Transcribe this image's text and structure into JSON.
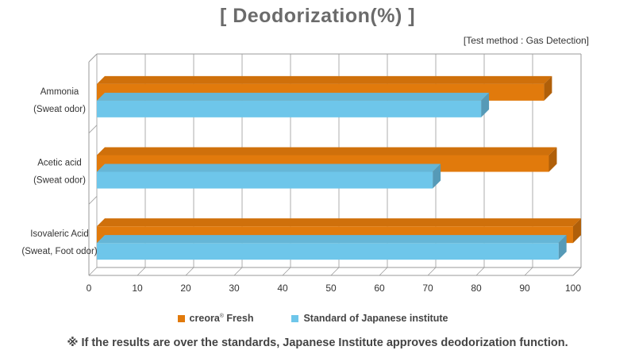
{
  "title": "[ Deodorization(%) ]",
  "test_method": "[Test method : Gas Detection]",
  "footnote": "※ If the results are over the standards, Japanese Institute approves deodorization function.",
  "chart_data": {
    "type": "bar",
    "orientation": "horizontal",
    "categories": [
      [
        "Ammonia",
        "(Sweat odor)"
      ],
      [
        "Acetic acid",
        "(Sweat odor)"
      ],
      [
        "Isovaleric Acid",
        "(Sweat, Foot odor)"
      ]
    ],
    "series": [
      {
        "name": "creora",
        "name_sup": "®",
        "name_suffix": " Fresh",
        "color": "#e17a0c",
        "values": [
          94,
          95,
          100
        ]
      },
      {
        "name": "Standard of Japanese institute",
        "color": "#6ec6ea",
        "values": [
          81,
          71,
          97
        ]
      }
    ],
    "xlim": [
      0,
      100
    ],
    "xticks": [
      0,
      10,
      20,
      30,
      40,
      50,
      60,
      70,
      80,
      90,
      100
    ],
    "grid": true,
    "legend": "bottom-center"
  }
}
